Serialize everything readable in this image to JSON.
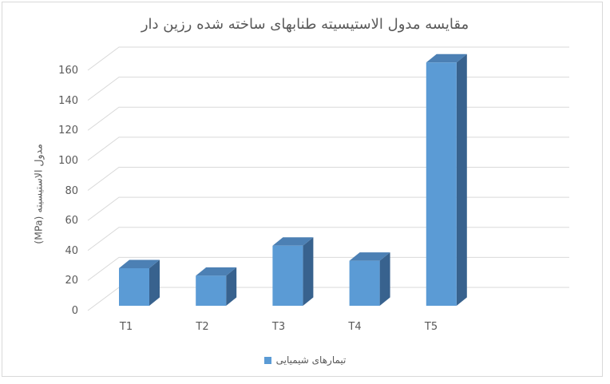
{
  "chart_title": "مقایسه مدول الاستیسیته طنابهای ساخته شده رزین دار",
  "y_axis_title": "مدول الاستیسیته (MPa)",
  "legend": {
    "label": "تیمارهای شیمیایی",
    "swatch_color": "#5B9BD5"
  },
  "chart_data": {
    "type": "bar",
    "subtype": "3d-column",
    "title": "مقایسه مدول الاستیسیته طنابهای ساخته شده رزین دار",
    "categories": [
      "T1",
      "T2",
      "T3",
      "T4",
      "T5"
    ],
    "series": [
      {
        "name": "تیمارهای شیمیایی",
        "values": [
          25,
          20,
          40,
          30,
          162
        ]
      }
    ],
    "xlabel": "",
    "ylabel": "مدول الاستیسیته (MPa)",
    "ylim": [
      0,
      160
    ],
    "yticks": [
      0,
      20,
      40,
      60,
      80,
      100,
      120,
      140,
      160
    ],
    "grid": true,
    "legend_position": "bottom",
    "colors": {
      "bar_front": "#5B9BD5",
      "bar_top": "#4C80B4",
      "bar_side": "#38628E",
      "gridline": "#D9D9D9",
      "text": "#595959",
      "border": "#D9D9D9"
    }
  }
}
